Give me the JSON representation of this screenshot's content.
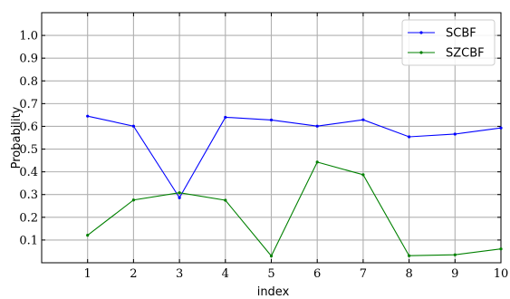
{
  "chart_data": {
    "type": "line",
    "xlabel": "index",
    "ylabel": "Probability",
    "x": [
      1,
      2,
      3,
      4,
      5,
      6,
      7,
      8,
      9,
      10
    ],
    "xlim": [
      0,
      10
    ],
    "ylim": [
      0.0,
      1.1
    ],
    "xticks": [
      1,
      2,
      3,
      4,
      5,
      6,
      7,
      8,
      9,
      10
    ],
    "yticks": [
      0.1,
      0.2,
      0.3,
      0.4,
      0.5,
      0.6,
      0.7,
      0.8,
      0.9,
      1.0
    ],
    "ytick_labels": [
      "0.1",
      "0.2",
      "0.3",
      "0.4",
      "0.5",
      "0.6",
      "0.7",
      "0.8",
      "0.9",
      "1.0"
    ],
    "grid": true,
    "legend_position": "top-right",
    "series": [
      {
        "name": "SCBF",
        "color": "#0000ff",
        "values": [
          0.645,
          0.601,
          0.286,
          0.64,
          0.628,
          0.601,
          0.629,
          0.554,
          0.566,
          0.593
        ]
      },
      {
        "name": "SZCBF",
        "color": "#008000",
        "values": [
          0.121,
          0.276,
          0.308,
          0.275,
          0.03,
          0.443,
          0.387,
          0.031,
          0.035,
          0.061
        ]
      }
    ]
  }
}
